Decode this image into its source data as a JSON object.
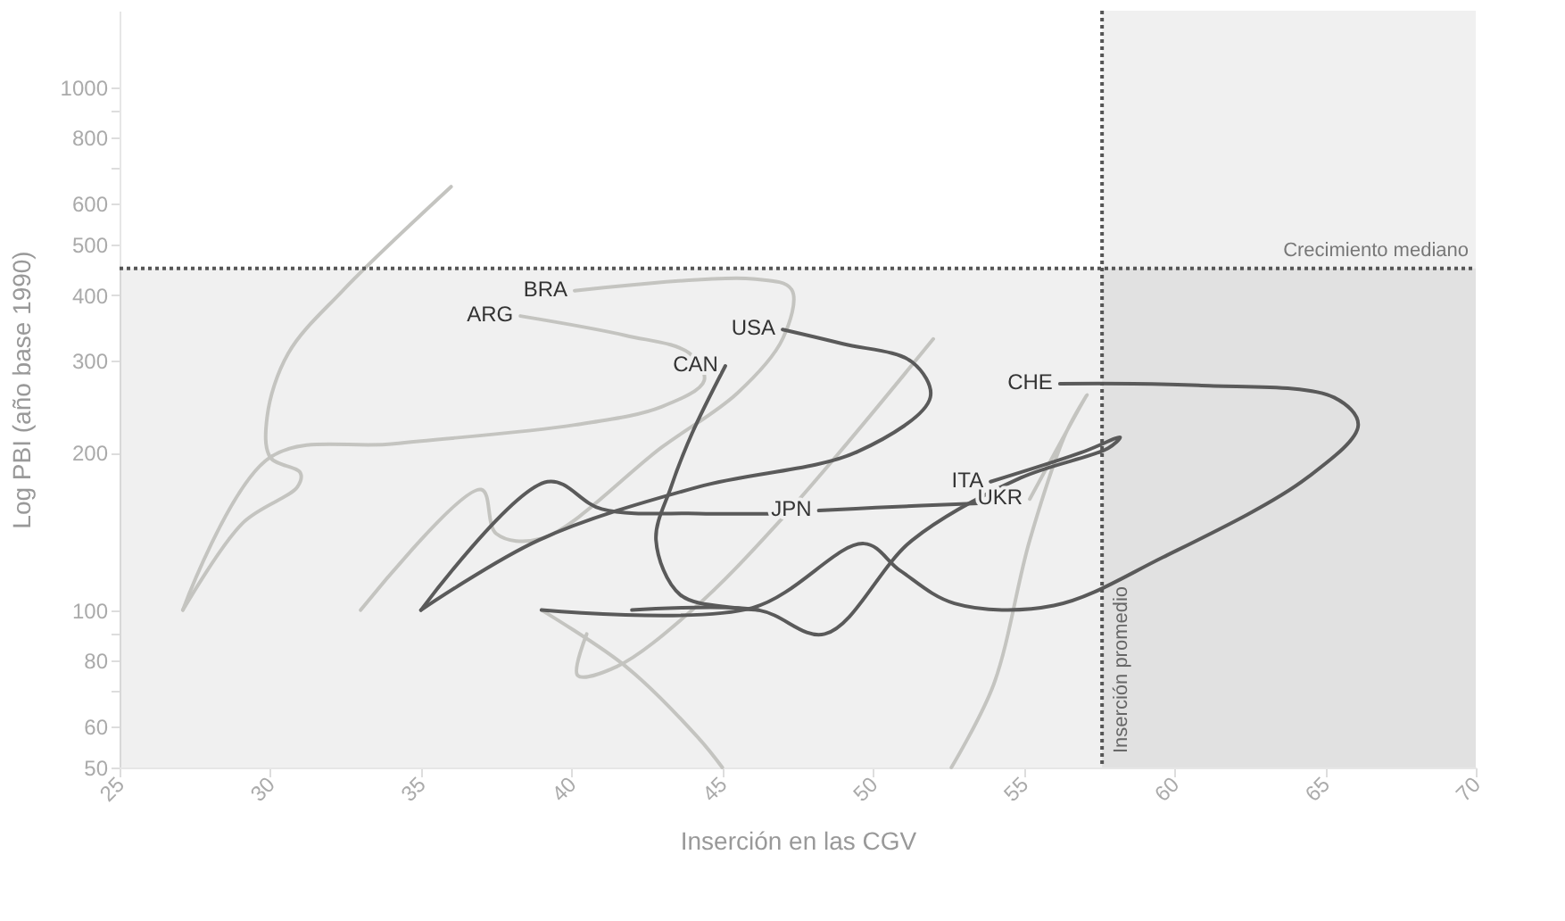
{
  "chart_data": {
    "type": "line",
    "xlabel": "Inserción en las CGV",
    "ylabel": "Log PBI (año base 1990)",
    "log": "y",
    "grid": false,
    "xlim": [
      25,
      70
    ],
    "xticks": [
      25,
      30,
      35,
      40,
      45,
      50,
      55,
      60,
      65,
      70
    ],
    "ylim": [
      50,
      1400
    ],
    "yticks": [
      50,
      60,
      {
        "value": 70,
        "label": null
      },
      80,
      {
        "value": 90,
        "label": null
      },
      100,
      200,
      300,
      400,
      500,
      600,
      {
        "value": 700,
        "label": null
      },
      800,
      {
        "value": 900,
        "label": null
      },
      1000
    ],
    "ref_lines": [
      {
        "axis": "y",
        "value": 450,
        "label": "Crecimiento mediano",
        "color": "#555555",
        "line_style": "dotted"
      },
      {
        "axis": "x",
        "value": 57.6,
        "label": "Inserción promedio",
        "color": "#555555",
        "line_style": "dotted"
      }
    ],
    "bands": [
      {
        "axis": "y",
        "from": 50,
        "to": 450,
        "color": "#f0f0f0"
      },
      {
        "axis": "x",
        "from": 57.6,
        "to": 70,
        "color": "#f0f0f0"
      }
    ],
    "series": [
      {
        "name": null,
        "color": "#c4c4c0",
        "x": [
          27.1,
          29.1,
          30.9,
          31.0,
          30.0,
          29.9,
          30.6,
          32.4,
          36.0
        ],
        "values": [
          100,
          147,
          172,
          183,
          196,
          235,
          310,
          408,
          645
        ]
      },
      {
        "name": "ARG",
        "color": "#c4c4c0",
        "x": [
          27.1,
          30.0,
          34.1,
          40.1,
          43.0,
          44.4,
          43.9,
          41.8,
          38.3
        ],
        "values": [
          100,
          196,
          208,
          226,
          245,
          275,
          310,
          335,
          365
        ]
      },
      {
        "name": "BRA",
        "color": "#c4c4c0",
        "x": [
          33.0,
          37.0,
          37.5,
          39.0,
          43.0,
          45.5,
          47.0,
          47.3,
          46.0,
          40.1
        ],
        "values": [
          100,
          170,
          140,
          137,
          205,
          260,
          330,
          410,
          430,
          408
        ]
      },
      {
        "name": null,
        "color": "#c4c4c0",
        "x": [
          40.5,
          40.2,
          41.5,
          44.0,
          47.0,
          52.0
        ],
        "values": [
          90,
          75,
          78,
          100,
          150,
          330
        ]
      },
      {
        "name": "UKR",
        "color": "#c4c4c0",
        "x": [
          39.0,
          41.8,
          44.2,
          45.0,
          null,
          52.6,
          54.0,
          55.2,
          56.4,
          57.1,
          56.7,
          55.2
        ],
        "values": [
          100,
          78,
          57,
          50,
          null,
          50,
          72,
          136,
          218,
          258,
          235,
          163
        ]
      },
      {
        "name": null,
        "color": "#5a5a5a",
        "x": [
          35.0,
          39.2,
          41.0,
          44.2,
          47.0
        ],
        "values": [
          100,
          176,
          156,
          153,
          153
        ]
      },
      {
        "name": "JPN",
        "color": "#5a5a5a",
        "x": [
          53.5,
          50.1,
          48.2
        ],
        "values": [
          160,
          157,
          155
        ]
      },
      {
        "name": "USA",
        "color": "#5a5a5a",
        "x": [
          35.0,
          38.9,
          44.2,
          49.5,
          51.9,
          51.3,
          49.0,
          47.0
        ],
        "values": [
          100,
          136,
          172,
          201,
          255,
          298,
          323,
          344
        ]
      },
      {
        "name": "CAN",
        "color": "#5a5a5a",
        "x": [
          46.2,
          45.4,
          43.6,
          42.8,
          43.3,
          44.0,
          45.1
        ],
        "values": [
          100,
          101,
          107,
          136,
          172,
          218,
          293
        ]
      },
      {
        "name": "ITA",
        "color": "#5a5a5a",
        "x": [
          42.0,
          46.2,
          48.4,
          51.3,
          54.9,
          57.8,
          58.2,
          56.9,
          53.9
        ],
        "values": [
          100,
          100,
          90,
          136,
          179,
          204,
          214,
          200,
          176
        ]
      },
      {
        "name": "CHE",
        "color": "#5a5a5a",
        "x": [
          39.0,
          46.0,
          49.7,
          50.9,
          52.7,
          56.0,
          59.6,
          64.4,
          66.1,
          65.3,
          60.8,
          56.2
        ],
        "values": [
          100,
          101,
          134,
          119,
          103,
          102,
          126,
          179,
          226,
          255,
          269,
          271
        ]
      }
    ]
  }
}
